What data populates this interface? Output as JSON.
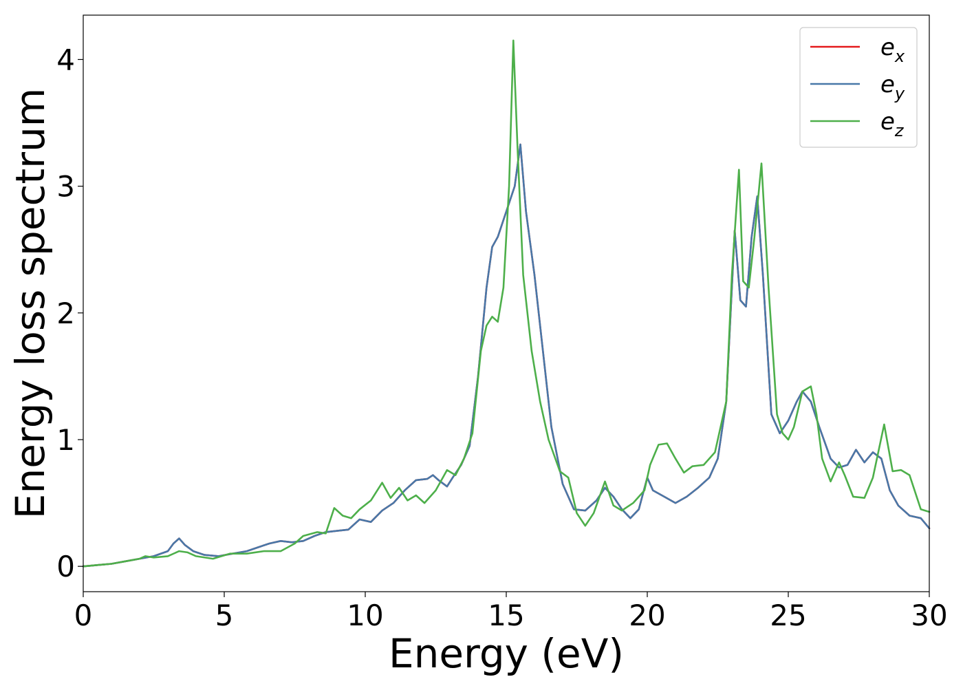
{
  "chart_data": {
    "type": "line",
    "title": "",
    "xlabel": "Energy (eV)",
    "ylabel": "Energy loss spectrum",
    "xlim": [
      0,
      30
    ],
    "ylim": [
      -0.2,
      4.35
    ],
    "xticks": [
      0,
      5,
      10,
      15,
      20,
      25,
      30
    ],
    "yticks": [
      0,
      1,
      2,
      3,
      4
    ],
    "grid": false,
    "legend_position": "top-right",
    "series": [
      {
        "name": "e_x",
        "legend_base": "e",
        "legend_sub": "x",
        "color": "#e41a1c",
        "x": [
          0,
          0.5,
          1,
          1.5,
          2,
          2.5,
          3,
          3.2,
          3.4,
          3.6,
          3.9,
          4.3,
          4.8,
          5.3,
          5.8,
          6.2,
          6.6,
          7,
          7.4,
          7.8,
          8.2,
          8.6,
          9,
          9.4,
          9.8,
          10.2,
          10.6,
          11,
          11.4,
          11.8,
          12.2,
          12.4,
          12.6,
          12.9,
          13.1,
          13.4,
          13.7,
          14,
          14.3,
          14.5,
          14.7,
          15,
          15.3,
          15.5,
          15.7,
          16,
          16.3,
          16.6,
          17,
          17.4,
          17.8,
          18.2,
          18.5,
          18.8,
          19.1,
          19.4,
          19.7,
          20,
          20.2,
          20.6,
          21,
          21.4,
          21.8,
          22.2,
          22.5,
          22.8,
          23.1,
          23.3,
          23.5,
          23.7,
          23.9,
          24.1,
          24.4,
          24.7,
          25,
          25.3,
          25.5,
          25.8,
          26.1,
          26.5,
          26.8,
          27.1,
          27.4,
          27.7,
          28,
          28.3,
          28.6,
          28.9,
          29.3,
          29.7,
          30
        ],
        "y": [
          0,
          0.01,
          0.02,
          0.04,
          0.06,
          0.08,
          0.12,
          0.18,
          0.22,
          0.17,
          0.12,
          0.09,
          0.08,
          0.1,
          0.12,
          0.15,
          0.18,
          0.2,
          0.19,
          0.2,
          0.24,
          0.27,
          0.28,
          0.29,
          0.37,
          0.35,
          0.44,
          0.5,
          0.6,
          0.68,
          0.69,
          0.72,
          0.68,
          0.63,
          0.7,
          0.8,
          0.95,
          1.5,
          2.2,
          2.52,
          2.6,
          2.8,
          3.0,
          3.33,
          2.8,
          2.3,
          1.7,
          1.1,
          0.65,
          0.45,
          0.44,
          0.52,
          0.62,
          0.55,
          0.45,
          0.38,
          0.45,
          0.7,
          0.6,
          0.55,
          0.5,
          0.55,
          0.62,
          0.7,
          0.85,
          1.3,
          2.65,
          2.1,
          2.05,
          2.6,
          2.92,
          2.3,
          1.2,
          1.05,
          1.15,
          1.3,
          1.38,
          1.3,
          1.1,
          0.85,
          0.78,
          0.8,
          0.92,
          0.82,
          0.9,
          0.85,
          0.6,
          0.48,
          0.4,
          0.38,
          0.3
        ]
      },
      {
        "name": "e_y",
        "legend_base": "e",
        "legend_sub": "y",
        "color": "#4878a8",
        "x": [
          0,
          0.5,
          1,
          1.5,
          2,
          2.5,
          3,
          3.2,
          3.4,
          3.6,
          3.9,
          4.3,
          4.8,
          5.3,
          5.8,
          6.2,
          6.6,
          7,
          7.4,
          7.8,
          8.2,
          8.6,
          9,
          9.4,
          9.8,
          10.2,
          10.6,
          11,
          11.4,
          11.8,
          12.2,
          12.4,
          12.6,
          12.9,
          13.1,
          13.4,
          13.7,
          14,
          14.3,
          14.5,
          14.7,
          15,
          15.3,
          15.5,
          15.7,
          16,
          16.3,
          16.6,
          17,
          17.4,
          17.8,
          18.2,
          18.5,
          18.8,
          19.1,
          19.4,
          19.7,
          20,
          20.2,
          20.6,
          21,
          21.4,
          21.8,
          22.2,
          22.5,
          22.8,
          23.1,
          23.3,
          23.5,
          23.7,
          23.9,
          24.1,
          24.4,
          24.7,
          25,
          25.3,
          25.5,
          25.8,
          26.1,
          26.5,
          26.8,
          27.1,
          27.4,
          27.7,
          28,
          28.3,
          28.6,
          28.9,
          29.3,
          29.7,
          30
        ],
        "y": [
          0,
          0.01,
          0.02,
          0.04,
          0.06,
          0.08,
          0.12,
          0.18,
          0.22,
          0.17,
          0.12,
          0.09,
          0.08,
          0.1,
          0.12,
          0.15,
          0.18,
          0.2,
          0.19,
          0.2,
          0.24,
          0.27,
          0.28,
          0.29,
          0.37,
          0.35,
          0.44,
          0.5,
          0.6,
          0.68,
          0.69,
          0.72,
          0.68,
          0.63,
          0.7,
          0.8,
          0.95,
          1.5,
          2.2,
          2.52,
          2.6,
          2.8,
          3.0,
          3.33,
          2.8,
          2.3,
          1.7,
          1.1,
          0.65,
          0.45,
          0.44,
          0.52,
          0.62,
          0.55,
          0.45,
          0.38,
          0.45,
          0.7,
          0.6,
          0.55,
          0.5,
          0.55,
          0.62,
          0.7,
          0.85,
          1.3,
          2.65,
          2.1,
          2.05,
          2.6,
          2.92,
          2.3,
          1.2,
          1.05,
          1.15,
          1.3,
          1.38,
          1.3,
          1.1,
          0.85,
          0.78,
          0.8,
          0.92,
          0.82,
          0.9,
          0.85,
          0.6,
          0.48,
          0.4,
          0.38,
          0.3
        ]
      },
      {
        "name": "e_z",
        "legend_base": "e",
        "legend_sub": "z",
        "color": "#4daf4a",
        "x": [
          0,
          0.5,
          1,
          1.5,
          2,
          2.2,
          2.5,
          3,
          3.4,
          3.7,
          4,
          4.6,
          5.2,
          5.8,
          6.4,
          7,
          7.5,
          7.8,
          8.3,
          8.6,
          8.9,
          9.2,
          9.5,
          9.8,
          10.2,
          10.6,
          10.9,
          11.2,
          11.5,
          11.8,
          12.1,
          12.5,
          12.9,
          13.2,
          13.5,
          13.8,
          14.1,
          14.3,
          14.5,
          14.7,
          14.9,
          15.1,
          15.25,
          15.4,
          15.6,
          15.9,
          16.2,
          16.5,
          16.9,
          17.2,
          17.5,
          17.8,
          18.1,
          18.5,
          18.8,
          19.1,
          19.5,
          19.9,
          20.1,
          20.4,
          20.7,
          21,
          21.3,
          21.6,
          22,
          22.4,
          22.8,
          23.0,
          23.25,
          23.4,
          23.6,
          23.8,
          24.05,
          24.3,
          24.6,
          24.8,
          25,
          25.2,
          25.5,
          25.8,
          26.0,
          26.2,
          26.5,
          26.8,
          27.0,
          27.3,
          27.7,
          28,
          28.4,
          28.7,
          29,
          29.3,
          29.7,
          30
        ],
        "y": [
          0,
          0.01,
          0.02,
          0.04,
          0.06,
          0.08,
          0.07,
          0.08,
          0.12,
          0.11,
          0.08,
          0.06,
          0.1,
          0.1,
          0.12,
          0.12,
          0.18,
          0.24,
          0.27,
          0.26,
          0.46,
          0.4,
          0.38,
          0.45,
          0.52,
          0.66,
          0.54,
          0.62,
          0.52,
          0.56,
          0.5,
          0.6,
          0.76,
          0.72,
          0.85,
          1.05,
          1.7,
          1.9,
          1.97,
          1.93,
          2.2,
          3.0,
          4.15,
          3.3,
          2.3,
          1.7,
          1.3,
          1.0,
          0.75,
          0.7,
          0.42,
          0.32,
          0.42,
          0.67,
          0.48,
          0.44,
          0.5,
          0.6,
          0.8,
          0.96,
          0.97,
          0.85,
          0.74,
          0.79,
          0.8,
          0.9,
          1.3,
          2.3,
          3.13,
          2.25,
          2.2,
          2.6,
          3.18,
          2.2,
          1.2,
          1.05,
          1.0,
          1.1,
          1.38,
          1.42,
          1.2,
          0.85,
          0.67,
          0.82,
          0.72,
          0.55,
          0.54,
          0.7,
          1.12,
          0.75,
          0.76,
          0.72,
          0.45,
          0.43
        ]
      }
    ]
  }
}
